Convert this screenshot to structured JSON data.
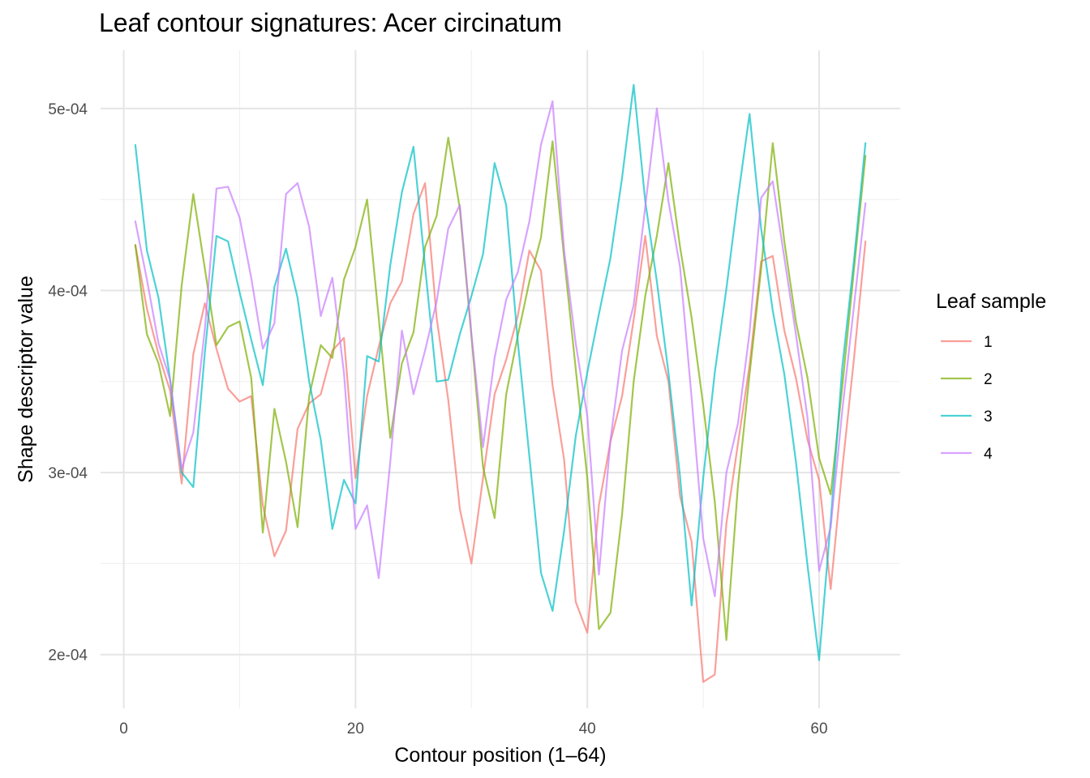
{
  "chart_data": {
    "type": "line",
    "title": "Leaf contour signatures: Acer circinatum",
    "xlabel": "Contour position (1–64)",
    "ylabel": "Shape descriptor value",
    "xlim": [
      -2,
      67
    ],
    "ylim": [
      0.0001705,
      0.000532
    ],
    "x_ticks": [
      0,
      20,
      40,
      60
    ],
    "x_tick_labels": [
      "0",
      "20",
      "40",
      "60"
    ],
    "x_minor_ticks": [
      10,
      30,
      50
    ],
    "y_ticks": [
      0.0002,
      0.0003,
      0.0004,
      0.0005
    ],
    "y_tick_labels": [
      "2e-04",
      "3e-04",
      "4e-04",
      "5e-04"
    ],
    "y_minor_ticks": [
      0.00025,
      0.00035,
      0.00045
    ],
    "grid": true,
    "legend": {
      "title": "Leaf sample",
      "position": "right"
    },
    "x": [
      1,
      2,
      3,
      4,
      5,
      6,
      7,
      8,
      9,
      10,
      11,
      12,
      13,
      14,
      15,
      16,
      17,
      18,
      19,
      20,
      21,
      22,
      23,
      24,
      25,
      26,
      27,
      28,
      29,
      30,
      31,
      32,
      33,
      34,
      35,
      36,
      37,
      38,
      39,
      40,
      41,
      42,
      43,
      44,
      45,
      46,
      47,
      48,
      49,
      50,
      51,
      52,
      53,
      54,
      55,
      56,
      57,
      58,
      59,
      60,
      61,
      62,
      63,
      64
    ],
    "series": [
      {
        "name": "1",
        "color": "#F8766D",
        "values": [
          0.000425,
          0.00039,
          0.000365,
          0.000345,
          0.000294,
          0.000365,
          0.000393,
          0.000368,
          0.000346,
          0.000339,
          0.000342,
          0.000282,
          0.000254,
          0.000268,
          0.000324,
          0.000338,
          0.000343,
          0.000367,
          0.000374,
          0.000297,
          0.000342,
          0.000369,
          0.000393,
          0.000405,
          0.000442,
          0.000459,
          0.000385,
          0.00034,
          0.00028,
          0.00025,
          0.000297,
          0.000343,
          0.000362,
          0.000386,
          0.000422,
          0.000411,
          0.000348,
          0.000307,
          0.000229,
          0.000212,
          0.000282,
          0.000317,
          0.000342,
          0.000384,
          0.00043,
          0.000375,
          0.00035,
          0.000287,
          0.000262,
          0.000185,
          0.000189,
          0.000272,
          0.000316,
          0.000359,
          0.000416,
          0.000419,
          0.000378,
          0.000352,
          0.000318,
          0.000296,
          0.000236,
          0.000302,
          0.000362,
          0.000427
        ]
      },
      {
        "name": "2",
        "color": "#7CAE00",
        "values": [
          0.000425,
          0.000376,
          0.00036,
          0.000331,
          0.000403,
          0.000453,
          0.000412,
          0.00037,
          0.00038,
          0.000383,
          0.000352,
          0.000267,
          0.000335,
          0.000306,
          0.00027,
          0.000342,
          0.00037,
          0.000363,
          0.000406,
          0.000424,
          0.00045,
          0.000385,
          0.000319,
          0.00036,
          0.000377,
          0.000424,
          0.000441,
          0.000484,
          0.000445,
          0.000375,
          0.000303,
          0.000275,
          0.000343,
          0.000375,
          0.000405,
          0.000429,
          0.000482,
          0.000418,
          0.000357,
          0.000297,
          0.000214,
          0.000223,
          0.000277,
          0.00035,
          0.000397,
          0.00043,
          0.00047,
          0.000424,
          0.000385,
          0.000337,
          0.000284,
          0.000208,
          0.000293,
          0.000354,
          0.000412,
          0.000481,
          0.000427,
          0.000383,
          0.000352,
          0.000308,
          0.000288,
          0.000347,
          0.000411,
          0.000474
        ]
      },
      {
        "name": "3",
        "color": "#00BFC4",
        "values": [
          0.00048,
          0.000422,
          0.000396,
          0.000351,
          0.0003,
          0.000292,
          0.000366,
          0.00043,
          0.000427,
          0.000399,
          0.000373,
          0.000348,
          0.000402,
          0.000423,
          0.000396,
          0.00035,
          0.000318,
          0.000269,
          0.000296,
          0.000283,
          0.000364,
          0.000361,
          0.000414,
          0.000454,
          0.000479,
          0.000413,
          0.00035,
          0.000351,
          0.000376,
          0.000397,
          0.00042,
          0.00047,
          0.000447,
          0.000372,
          0.000309,
          0.000245,
          0.000224,
          0.000268,
          0.00032,
          0.000355,
          0.000387,
          0.000418,
          0.000462,
          0.000513,
          0.000449,
          0.000405,
          0.000355,
          0.000298,
          0.000227,
          0.000297,
          0.000355,
          0.000401,
          0.000451,
          0.000497,
          0.000434,
          0.000389,
          0.000354,
          0.000306,
          0.000249,
          0.000197,
          0.000273,
          0.000358,
          0.000416,
          0.000481
        ]
      },
      {
        "name": "4",
        "color": "#C77CFF",
        "values": [
          0.000438,
          0.000406,
          0.000371,
          0.000351,
          0.000302,
          0.000322,
          0.000379,
          0.000456,
          0.000457,
          0.00044,
          0.000407,
          0.000368,
          0.000382,
          0.000453,
          0.000459,
          0.000435,
          0.000386,
          0.000407,
          0.000355,
          0.000269,
          0.000282,
          0.000242,
          0.000306,
          0.000378,
          0.000343,
          0.000367,
          0.000394,
          0.000434,
          0.000447,
          0.000376,
          0.000314,
          0.000363,
          0.000395,
          0.00041,
          0.000438,
          0.00048,
          0.000504,
          0.000422,
          0.000371,
          0.000331,
          0.000244,
          0.000318,
          0.000367,
          0.000392,
          0.000446,
          0.0005,
          0.000449,
          0.000413,
          0.000341,
          0.000264,
          0.000232,
          0.0003,
          0.000327,
          0.000377,
          0.000451,
          0.00046,
          0.000418,
          0.000376,
          0.00033,
          0.000246,
          0.00027,
          0.000334,
          0.000391,
          0.000448
        ]
      }
    ]
  }
}
